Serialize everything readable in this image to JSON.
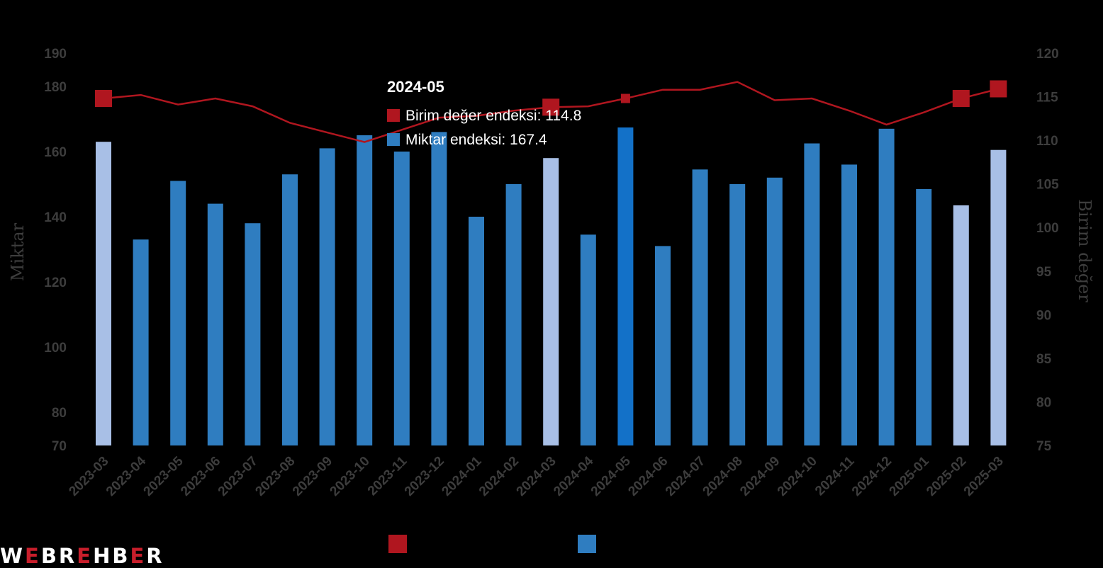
{
  "colors": {
    "bar": "#2f7dc0",
    "bar_light": "#a8bfe6",
    "bar_highlight": "#1371c8",
    "line": "#b0161f",
    "marker": "#b0161f",
    "tick_text": "#3d3d3d"
  },
  "tooltip": {
    "title": "2024-05",
    "rows": [
      {
        "label": "Birim değer endeksi: 114.8",
        "color": "#b0161f"
      },
      {
        "label": "Miktar endeksi: 167.4",
        "color": "#2f7dc0"
      }
    ]
  },
  "logo": {
    "text": "WEBREHBER"
  },
  "chart_data": {
    "type": "bar+line",
    "categories": [
      "2023-03",
      "2023-04",
      "2023-05",
      "2023-06",
      "2023-07",
      "2023-08",
      "2023-09",
      "2023-10",
      "2023-11",
      "2023-12",
      "2024-01",
      "2024-02",
      "2024-03",
      "2024-04",
      "2024-05",
      "2024-06",
      "2024-07",
      "2024-08",
      "2024-09",
      "2024-10",
      "2024-11",
      "2024-12",
      "2025-01",
      "2025-02",
      "2025-03"
    ],
    "y_left": {
      "label": "Miktar",
      "ticks": [
        70,
        80,
        100,
        120,
        140,
        160,
        180,
        190
      ],
      "range": [
        70,
        190
      ]
    },
    "y_right": {
      "label": "Birim değer",
      "ticks": [
        75,
        80,
        85,
        90,
        95,
        100,
        105,
        110,
        115,
        120
      ],
      "range": [
        75,
        120
      ]
    },
    "series": [
      {
        "axis": "left",
        "kind": "bar",
        "values": [
          163,
          133,
          151,
          144,
          138,
          153,
          161,
          165,
          160,
          166,
          140,
          150,
          158,
          134.5,
          167.4,
          131,
          154.5,
          150,
          152,
          162.5,
          156,
          167,
          148.5,
          143.5,
          160.5
        ],
        "light_indices": [
          0,
          12,
          23,
          24
        ],
        "highlight_index": 14
      },
      {
        "axis": "right",
        "kind": "line",
        "values": [
          114.8,
          115.2,
          114.1,
          114.8,
          113.9,
          112.0,
          110.9,
          109.8,
          111.2,
          112.6,
          112.8,
          113.4,
          113.8,
          113.9,
          114.8,
          115.8,
          115.8,
          116.7,
          114.6,
          114.8,
          113.4,
          111.8,
          113.2,
          114.8,
          115.9
        ],
        "marker_indices": [
          0,
          12,
          14,
          23,
          24
        ]
      }
    ],
    "legend_placement": "bottom-center"
  }
}
